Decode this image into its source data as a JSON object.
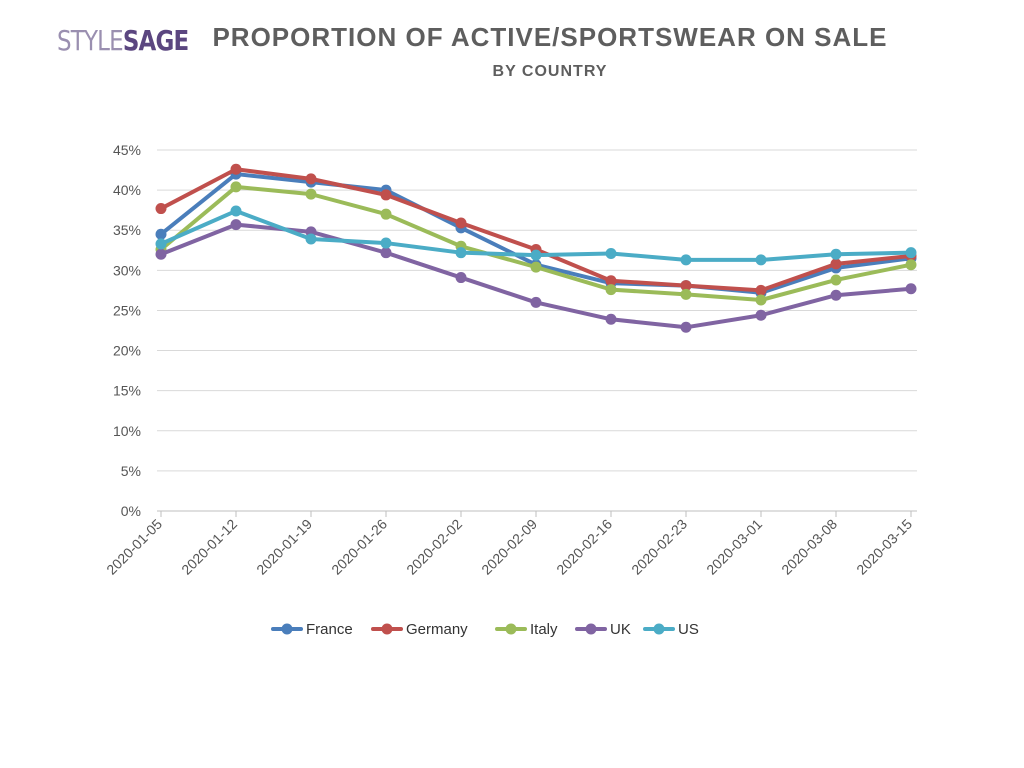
{
  "logo": {
    "part1": "STYLE",
    "part2": "SAGE"
  },
  "chart_data": {
    "type": "line",
    "title": "PROPORTION OF ACTIVE/SPORTSWEAR ON SALE",
    "subtitle": "BY COUNTRY",
    "xlabel": "",
    "ylabel": "",
    "x": [
      "2020-01-05",
      "2020-01-12",
      "2020-01-19",
      "2020-01-26",
      "2020-02-02",
      "2020-02-09",
      "2020-02-16",
      "2020-02-23",
      "2020-03-01",
      "2020-03-08",
      "2020-03-15"
    ],
    "ylim": [
      0,
      45
    ],
    "yticks": [
      0,
      5,
      10,
      15,
      20,
      25,
      30,
      35,
      40,
      45
    ],
    "ytick_labels": [
      "0%",
      "5%",
      "10%",
      "15%",
      "20%",
      "25%",
      "30%",
      "35%",
      "40%",
      "45%"
    ],
    "grid": true,
    "legend": "bottom",
    "series": [
      {
        "name": "France",
        "color": "#4a7ebb",
        "values": [
          34.5,
          42.0,
          41.0,
          40.0,
          35.3,
          30.7,
          28.4,
          28.1,
          27.2,
          30.3,
          31.5
        ]
      },
      {
        "name": "Germany",
        "color": "#c0504d",
        "values": [
          37.7,
          42.6,
          41.4,
          39.4,
          35.9,
          32.6,
          28.7,
          28.1,
          27.5,
          30.8,
          31.8
        ]
      },
      {
        "name": "Italy",
        "color": "#9bbb59",
        "values": [
          32.6,
          40.4,
          39.5,
          37.0,
          33.0,
          30.4,
          27.6,
          27.0,
          26.3,
          28.8,
          30.7
        ]
      },
      {
        "name": "UK",
        "color": "#8064a2",
        "values": [
          32.0,
          35.7,
          34.8,
          32.2,
          29.1,
          26.0,
          23.9,
          22.9,
          24.4,
          26.9,
          27.7
        ]
      },
      {
        "name": "US",
        "color": "#4bacc6",
        "values": [
          33.3,
          37.4,
          33.9,
          33.4,
          32.2,
          31.9,
          32.1,
          31.3,
          31.3,
          32.0,
          32.2
        ]
      }
    ]
  }
}
